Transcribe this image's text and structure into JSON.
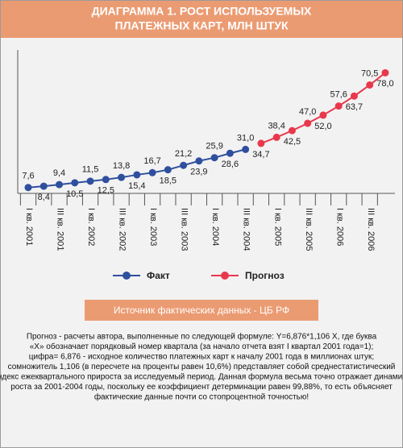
{
  "header": {
    "title_lines": [
      "ДИАГРАММА 1. РОСТ ИСПОЛЬЗУЕМЫХ",
      "ПЛАТЕЖНЫХ КАРТ, МЛН ШТУК"
    ]
  },
  "chart_data": {
    "type": "line",
    "categories": [
      "I кв. 2001",
      null,
      "III кв. 2001",
      null,
      "I кв. 2002",
      null,
      "III кв. 2002",
      null,
      "I кв. 2003",
      null,
      "III кв. 2003",
      null,
      "I кв. 2004",
      null,
      "III кв. 2004",
      null,
      "I кв. 2005",
      null,
      "III кв. 2005",
      null,
      "I кв. 2006",
      null,
      "III кв. 2006",
      null
    ],
    "series": [
      {
        "name": "Факт",
        "color": "#2f4f9e",
        "values": [
          7.6,
          8.4,
          9.4,
          10.5,
          11.5,
          12.5,
          13.8,
          15.4,
          16.7,
          18.5,
          21.2,
          23.9,
          25.9,
          28.6,
          31.0,
          null,
          null,
          null,
          null,
          null,
          null,
          null,
          null,
          null
        ],
        "value_labels": [
          "7,6",
          "8,4",
          "9,4",
          "10,5",
          "11,5",
          "12,5",
          "13,8",
          "15,4",
          "16,7",
          "18,5",
          "21,2",
          "23,9",
          "25,9",
          "28,6",
          "31,0",
          null,
          null,
          null,
          null,
          null,
          null,
          null,
          null,
          null
        ]
      },
      {
        "name": "Прогноз",
        "color": "#e8384c",
        "values": [
          null,
          null,
          null,
          null,
          null,
          null,
          null,
          null,
          null,
          null,
          null,
          null,
          null,
          null,
          null,
          34.7,
          38.4,
          42.5,
          47.0,
          52.0,
          57.6,
          63.7,
          70.5,
          78.0
        ],
        "value_labels": [
          null,
          null,
          null,
          null,
          null,
          null,
          null,
          null,
          null,
          null,
          null,
          null,
          null,
          null,
          null,
          "34,7",
          "38,4",
          "42,5",
          "47,0",
          "52,0",
          "57,6",
          "63,7",
          "70,5",
          "78,0"
        ]
      }
    ],
    "ylim": [
      4,
      92
    ]
  },
  "source": "Источник фактических данных - ЦБ РФ",
  "note": [
    "Прогноз - расчеты автора, выполненные по следующей формуле: Y=6,876*1,106 X, где буква",
    "«Х» обозначает порядковый номер квартала (за начало отчета взят I квартал 2001 года=1);",
    "цифра= 6,876 - исходное количество платежных карт к началу 2001 года в миллионах штук;",
    "сомножитель 1,106 (в пересчете на проценты равен 10,6%) представляет собой среднестатистический",
    "индекс ежеквартального прироста за исследуемый период. Данная формула весьма точно отражает динамику",
    "роста за 2001-2004 годы, поскольку ее коэффициент детерминации равен 99,88%, то есть объясняет",
    "фактические данные почти со стопроцентной точностью!"
  ]
}
